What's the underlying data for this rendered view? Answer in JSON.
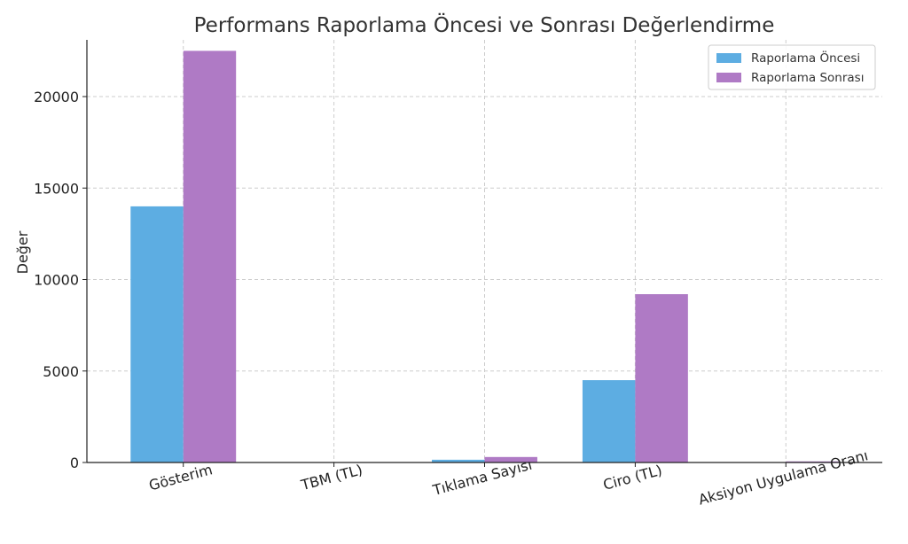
{
  "chart_data": {
    "type": "bar",
    "title": "Performans Raporlama Öncesi ve Sonrası Değerlendirme",
    "xlabel": "",
    "ylabel": "Değer",
    "categories": [
      "Gösterim",
      "TBM (TL)",
      "Tıklama Sayısı",
      "Ciro (TL)",
      "Aksiyon Uygulama Oranı"
    ],
    "series": [
      {
        "name": "Raporlama Öncesi",
        "color": "#5DADE2",
        "values": [
          14000,
          2.5,
          150,
          4500,
          3
        ]
      },
      {
        "name": "Raporlama Sonrası",
        "color": "#AF7AC5",
        "values": [
          22500,
          1.8,
          300,
          9200,
          60
        ]
      }
    ],
    "ylim": [
      0,
      23100
    ],
    "yticks": [
      0,
      5000,
      10000,
      15000,
      20000
    ],
    "grid": true,
    "legend_position": "top-right"
  }
}
